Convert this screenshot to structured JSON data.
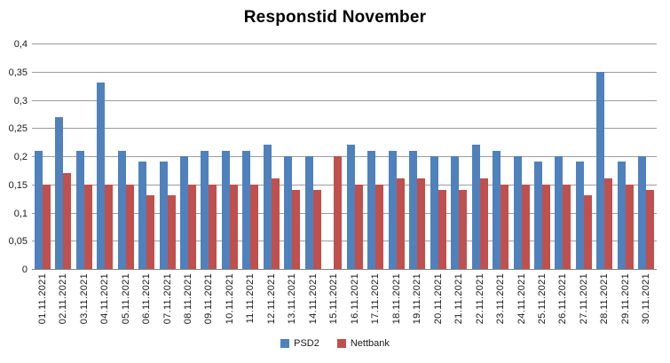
{
  "title": "Responstid November",
  "colors": {
    "psd2": "#4F81BD",
    "nettbank": "#C0504D",
    "gridline": "#9c9c9c",
    "axis": "#808080",
    "background": "#ffffff",
    "text": "#000000"
  },
  "chart_data": {
    "type": "bar",
    "title": "Responstid November",
    "xlabel": "",
    "ylabel": "",
    "ylim": [
      0,
      0.4
    ],
    "ytick_step": 0.05,
    "ytick_labels": [
      "0",
      "0,05",
      "0,1",
      "0,15",
      "0,2",
      "0,25",
      "0,3",
      "0,35",
      "0,4"
    ],
    "grid": true,
    "legend_position": "bottom",
    "categories": [
      "01.11.2021",
      "02.11.2021",
      "03.11.2021",
      "04.11.2021",
      "05.11.2021",
      "06.11.2021",
      "07.11.2021",
      "08.11.2021",
      "09.11.2021",
      "10.11.2021",
      "11.11.2021",
      "12.11.2021",
      "13.11.2021",
      "14.11.2021",
      "15.11.2021",
      "16.11.2021",
      "17.11.2021",
      "18.11.2021",
      "19.11.2021",
      "20.11.2021",
      "21.11.2021",
      "22.11.2021",
      "23.11.2021",
      "24.11.2021",
      "25.11.2021",
      "26.11.2021",
      "27.11.2021",
      "28.11.2021",
      "29.11.2021",
      "30.11.2021"
    ],
    "series": [
      {
        "name": "PSD2",
        "color": "#4F81BD",
        "values": [
          0.21,
          0.27,
          0.21,
          0.33,
          0.21,
          0.19,
          0.19,
          0.2,
          0.21,
          0.21,
          0.21,
          0.22,
          0.2,
          0.2,
          null,
          0.22,
          0.21,
          0.21,
          0.21,
          0.2,
          0.2,
          0.22,
          0.21,
          0.2,
          0.19,
          0.2,
          0.19,
          0.35,
          0.19,
          0.2
        ]
      },
      {
        "name": "Nettbank",
        "color": "#C0504D",
        "values": [
          0.15,
          0.17,
          0.15,
          0.15,
          0.15,
          0.13,
          0.13,
          0.15,
          0.15,
          0.15,
          0.15,
          0.16,
          0.14,
          0.14,
          0.2,
          0.15,
          0.15,
          0.16,
          0.16,
          0.14,
          0.14,
          0.16,
          0.15,
          0.15,
          0.15,
          0.15,
          0.13,
          0.16,
          0.15,
          0.14
        ]
      }
    ]
  }
}
